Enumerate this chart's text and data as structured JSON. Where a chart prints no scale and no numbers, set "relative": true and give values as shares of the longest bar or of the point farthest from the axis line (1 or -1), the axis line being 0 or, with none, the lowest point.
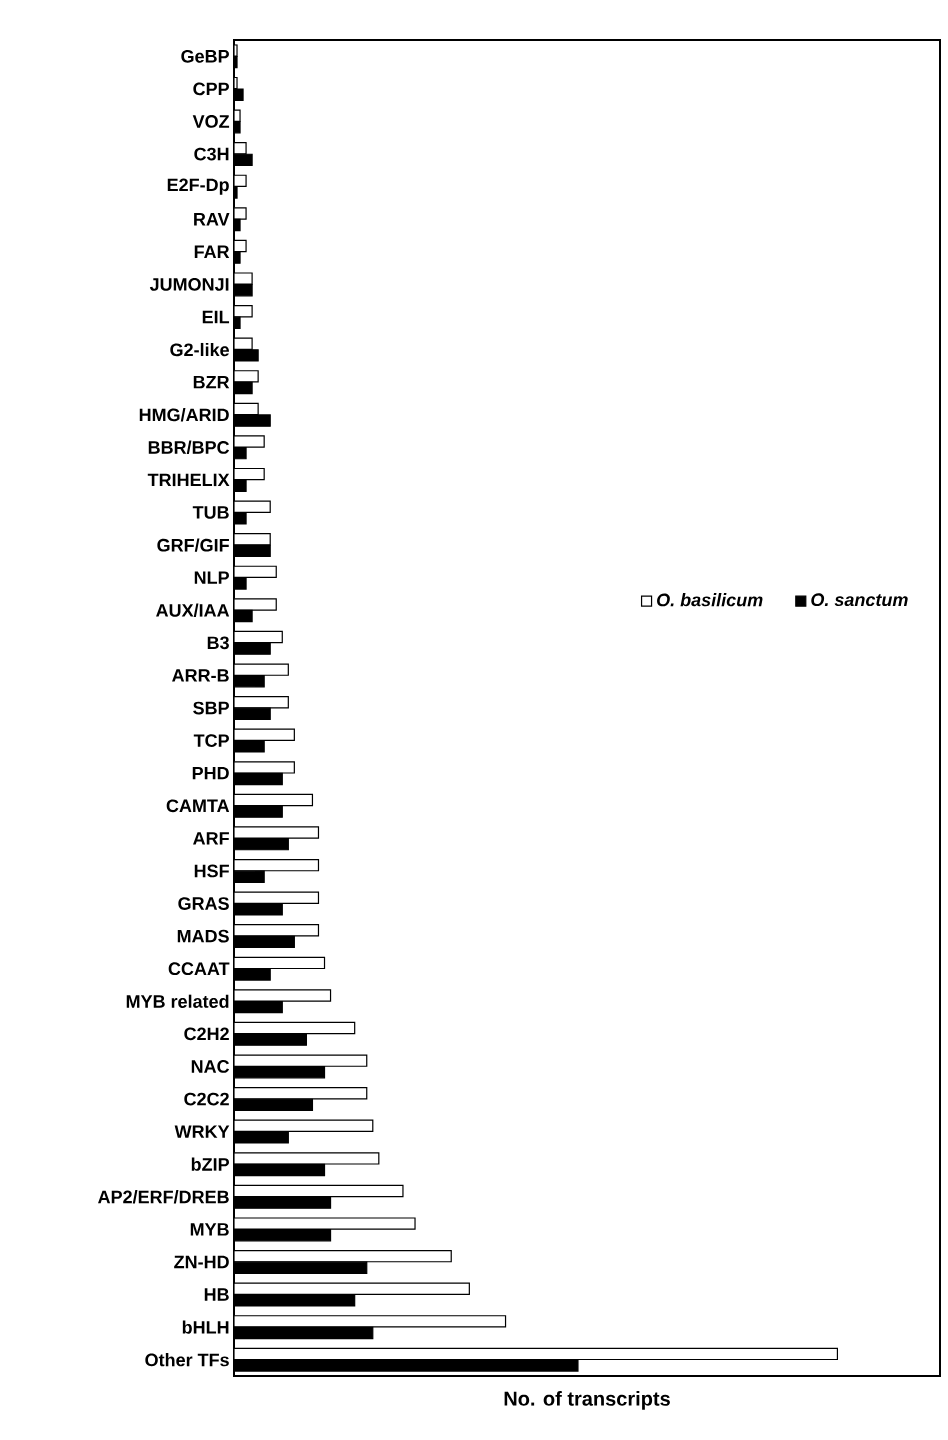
{
  "chart_data": {
    "type": "bar",
    "orientation": "horizontal",
    "relative": true,
    "xlabel": "No. of transcripts",
    "legend": "right",
    "categories": [
      "GeBP",
      "CPP",
      "VOZ",
      "C3H",
      "E2F-Dp",
      "RAV",
      "FAR",
      "JUMONJI",
      "EIL",
      "G2-like",
      "BZR",
      "HMG/ARID",
      "BBR/BPC",
      "TRIHELIX",
      "TUB",
      "GRF/GIF",
      "NLP",
      "AUX/IAA",
      "B3",
      "ARR-B",
      "SBP",
      "TCP",
      "PHD",
      "CAMTA",
      "ARF",
      "HSF",
      "GRAS",
      "MADS",
      "CCAAT",
      "MYB related",
      "C2H2",
      "NAC",
      "C2C2",
      "WRKY",
      "bZIP",
      "AP2/ERF/DREB",
      "MYB",
      "ZN-HD",
      "HB",
      "bHLH",
      "Other TFs"
    ],
    "series": [
      {
        "name": "O. basilicum",
        "color": "#ffffff",
        "values": [
          0.005,
          0.005,
          0.01,
          0.02,
          0.02,
          0.02,
          0.02,
          0.03,
          0.03,
          0.03,
          0.04,
          0.04,
          0.05,
          0.05,
          0.06,
          0.06,
          0.07,
          0.07,
          0.08,
          0.09,
          0.09,
          0.1,
          0.1,
          0.13,
          0.14,
          0.14,
          0.14,
          0.14,
          0.15,
          0.16,
          0.2,
          0.22,
          0.22,
          0.23,
          0.24,
          0.28,
          0.3,
          0.36,
          0.39,
          0.45,
          1.0
        ]
      },
      {
        "name": "O. sanctum",
        "color": "#000000",
        "values": [
          0.005,
          0.015,
          0.01,
          0.03,
          0.005,
          0.01,
          0.01,
          0.03,
          0.01,
          0.04,
          0.03,
          0.06,
          0.02,
          0.02,
          0.02,
          0.06,
          0.02,
          0.03,
          0.06,
          0.05,
          0.06,
          0.05,
          0.08,
          0.08,
          0.09,
          0.05,
          0.08,
          0.1,
          0.06,
          0.08,
          0.12,
          0.15,
          0.13,
          0.09,
          0.15,
          0.16,
          0.16,
          0.22,
          0.2,
          0.23,
          0.57
        ]
      }
    ]
  }
}
